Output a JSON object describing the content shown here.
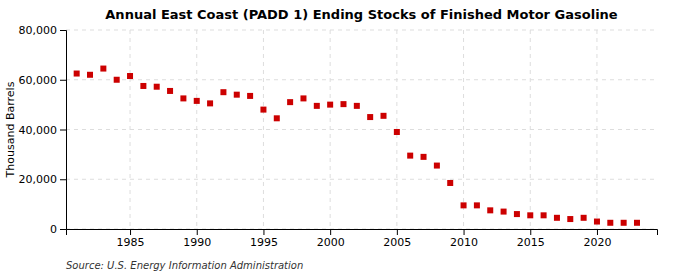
{
  "chart_data": {
    "type": "scatter",
    "title": "Annual East Coast (PADD 1) Ending Stocks of Finished Motor Gasoline",
    "ylabel": "Thousand Barrels",
    "annotations": [
      "Source: U.S. Energy Information Administration"
    ],
    "x": [
      1981,
      1982,
      1983,
      1984,
      1985,
      1986,
      1987,
      1988,
      1989,
      1990,
      1991,
      1992,
      1993,
      1994,
      1995,
      1996,
      1997,
      1998,
      1999,
      2000,
      2001,
      2002,
      2003,
      2004,
      2005,
      2006,
      2007,
      2008,
      2009,
      2010,
      2011,
      2012,
      2013,
      2014,
      2015,
      2016,
      2017,
      2018,
      2019,
      2020,
      2021,
      2022,
      2023
    ],
    "values": [
      62500,
      62000,
      64500,
      60000,
      61500,
      57500,
      57200,
      55500,
      52500,
      51500,
      50500,
      55000,
      54000,
      53500,
      48000,
      44500,
      51000,
      52500,
      49500,
      50000,
      50200,
      49500,
      45000,
      45500,
      39000,
      29500,
      29000,
      25500,
      18500,
      9500,
      9500,
      7500,
      7000,
      6000,
      5500,
      5500,
      4500,
      4000,
      4500,
      3000,
      2500,
      2500,
      2500
    ],
    "color": "#cc0000",
    "marker": "square",
    "xlim": [
      1980.2,
      2024.5
    ],
    "xticks": [
      1985,
      1990,
      1995,
      2000,
      2005,
      2010,
      2015,
      2020
    ],
    "ylim": [
      0,
      80000
    ],
    "yticks": [
      0,
      {
        "value": 20000,
        "label": "20,000"
      },
      {
        "value": 40000,
        "label": "40,000"
      },
      {
        "value": 60000,
        "label": "60,000"
      },
      {
        "value": 80000,
        "label": "80,000"
      }
    ],
    "grid": true
  }
}
